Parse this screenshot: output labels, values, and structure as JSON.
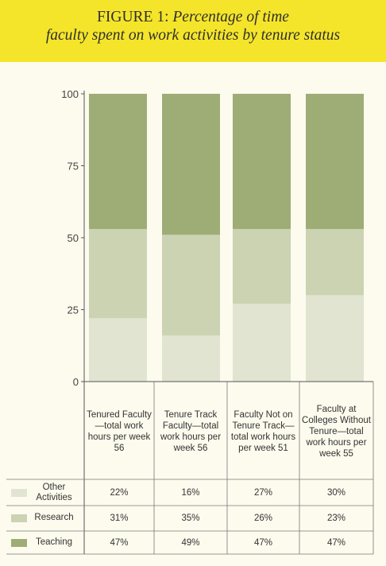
{
  "title": {
    "prefix": "FIGURE 1:",
    "line1": " Percentage of time",
    "line2": "faculty spent on work activities by tenure status"
  },
  "colors": {
    "other": "#e1e4d1",
    "research": "#ccd3b3",
    "teaching": "#9eac76",
    "banner": "#f5e52a",
    "background": "#fdfbee"
  },
  "chart_data": {
    "type": "bar",
    "stacked": true,
    "title": "FIGURE 1: Percentage of time faculty spent on work activities by tenure status",
    "ylim": [
      0,
      100
    ],
    "yticks": [
      "0",
      "25",
      "50",
      "75",
      "100"
    ],
    "categories": [
      "Tenured Faculty—total work hours per week 56",
      "Tenure Track Faculty—total work hours per week 56",
      "Faculty Not on Tenure Track—total work hours per week 51",
      "Faculty at Colleges Without Tenure—total work hours per week 55"
    ],
    "series": [
      {
        "name": "Other Activities",
        "values": [
          22,
          16,
          27,
          30
        ],
        "labels": [
          "22%",
          "16%",
          "27%",
          "30%"
        ]
      },
      {
        "name": "Research",
        "values": [
          31,
          35,
          26,
          23
        ],
        "labels": [
          "31%",
          "35%",
          "26%",
          "23%"
        ]
      },
      {
        "name": "Teaching",
        "values": [
          47,
          49,
          47,
          47
        ],
        "labels": [
          "47%",
          "49%",
          "47%",
          "47%"
        ]
      }
    ]
  }
}
